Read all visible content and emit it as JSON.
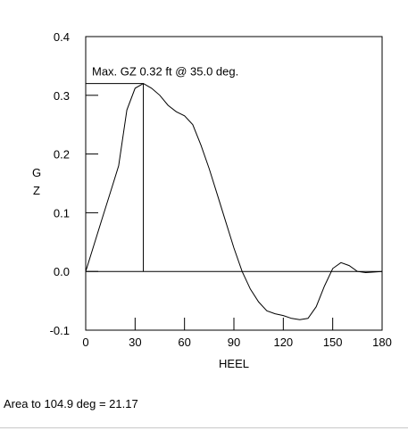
{
  "chart_data": {
    "type": "line",
    "xlabel": "HEEL",
    "ylabel": "GZ",
    "xlim": [
      0,
      180
    ],
    "ylim": [
      -0.1,
      0.4
    ],
    "xticks": [
      0,
      30,
      60,
      90,
      120,
      150,
      180
    ],
    "xtick_labels": [
      "0",
      "30",
      "60",
      "90",
      "120",
      "150",
      "180"
    ],
    "yticks": [
      -0.1,
      0.0,
      0.1,
      0.2,
      0.3,
      0.4
    ],
    "ytick_labels": [
      "-0.1",
      "0.0",
      "0.1",
      "0.2",
      "0.3",
      "0.4"
    ],
    "grid": false,
    "x": [
      0,
      5,
      10,
      15,
      20,
      25,
      30,
      35,
      40,
      45,
      50,
      55,
      60,
      65,
      70,
      75,
      80,
      85,
      90,
      95,
      100,
      105,
      110,
      115,
      120,
      125,
      130,
      135,
      140,
      145,
      150,
      155,
      160,
      165,
      170,
      175,
      180
    ],
    "y": [
      0.0,
      0.045,
      0.09,
      0.135,
      0.18,
      0.275,
      0.312,
      0.32,
      0.312,
      0.3,
      0.283,
      0.272,
      0.265,
      0.25,
      0.215,
      0.175,
      0.13,
      0.085,
      0.04,
      0.0,
      -0.03,
      -0.052,
      -0.067,
      -0.072,
      -0.075,
      -0.08,
      -0.082,
      -0.08,
      -0.06,
      -0.025,
      0.005,
      0.015,
      0.01,
      0.0,
      -0.002,
      -0.001,
      0.0
    ],
    "max_point": {
      "x": 35.0,
      "y": 0.32
    },
    "annotation": "Max. GZ 0.32 ft @ 35.0 deg."
  },
  "footer": {
    "area_text": "Area to 104.9 deg = 21.17"
  }
}
